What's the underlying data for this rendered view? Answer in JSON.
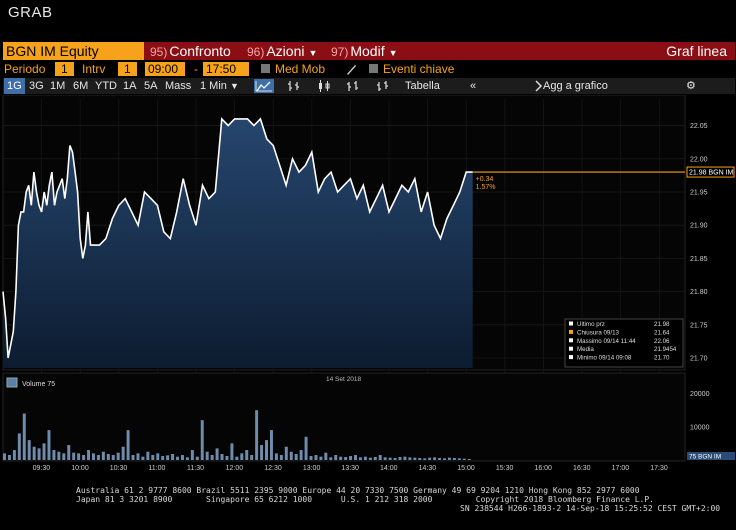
{
  "app": {
    "title": "GRAB"
  },
  "commandbar": {
    "ticker": "BGN IM Equity",
    "menus": [
      {
        "num": "95)",
        "label": "Confronto",
        "caret": false
      },
      {
        "num": "96)",
        "label": "Azioni",
        "caret": true
      },
      {
        "num": "97)",
        "label": "Modif",
        "caret": true
      }
    ],
    "view_title": "Graf linea"
  },
  "params": {
    "period_label": "Periodo",
    "period_value": "1",
    "interval_label": "Intrv",
    "interval_value": "1",
    "time_from": "09:00",
    "time_sep": "-",
    "time_to": "17:50",
    "med_mob": "Med Mob",
    "eventi": "Eventi chiave"
  },
  "toolbar": {
    "ranges": [
      "1G",
      "3G",
      "1M",
      "6M",
      "YTD",
      "1A",
      "5A",
      "Mass"
    ],
    "selected_range": "1G",
    "interval_select": "1 Min",
    "table_label": "Tabella",
    "add_label": "Agg a grafico"
  },
  "chart_data": {
    "type": "area",
    "date_label": "14 Set 2018",
    "x_ticks": [
      "09:30",
      "10:00",
      "10:30",
      "11:00",
      "11:30",
      "12:00",
      "12:30",
      "13:00",
      "13:30",
      "14:00",
      "14:30",
      "15:00",
      "15:30",
      "16:00",
      "16:30",
      "17:00",
      "17:30"
    ],
    "y_ticks": [
      "22.05",
      "22.00",
      "21.95",
      "21.90",
      "21.85",
      "21.80",
      "21.75",
      "21.70"
    ],
    "ylim": [
      21.685,
      22.09
    ],
    "xlim": [
      "09:00",
      "17:50"
    ],
    "series": [
      {
        "name": "BGN IM",
        "x": [
          "09:00",
          "09:02",
          "09:04",
          "09:06",
          "09:08",
          "09:10",
          "09:12",
          "09:14",
          "09:16",
          "09:18",
          "09:20",
          "09:22",
          "09:24",
          "09:26",
          "09:28",
          "09:30",
          "09:32",
          "09:34",
          "09:36",
          "09:38",
          "09:40",
          "09:42",
          "09:44",
          "09:46",
          "09:48",
          "09:50",
          "09:52",
          "09:54",
          "09:56",
          "09:58",
          "10:00",
          "10:02",
          "10:04",
          "10:06",
          "10:08",
          "10:10",
          "10:15",
          "10:20",
          "10:25",
          "10:30",
          "10:35",
          "10:40",
          "10:45",
          "10:50",
          "10:55",
          "11:00",
          "11:05",
          "11:10",
          "11:15",
          "11:20",
          "11:25",
          "11:30",
          "11:35",
          "11:40",
          "11:45",
          "11:50",
          "11:55",
          "12:00",
          "12:05",
          "12:10",
          "12:15",
          "12:20",
          "12:25",
          "12:30",
          "12:35",
          "12:40",
          "12:45",
          "12:50",
          "12:55",
          "13:00",
          "13:05",
          "13:10",
          "13:15",
          "13:20",
          "13:25",
          "13:30",
          "13:35",
          "13:40",
          "13:45",
          "13:50",
          "13:55",
          "14:00",
          "14:05",
          "14:10",
          "14:15",
          "14:20",
          "14:25",
          "14:30",
          "14:35",
          "14:40",
          "14:45",
          "14:50",
          "14:55",
          "15:00",
          "15:05"
        ],
        "y": [
          21.8,
          21.76,
          21.7,
          21.72,
          21.74,
          21.8,
          21.9,
          21.92,
          21.92,
          21.95,
          21.96,
          21.93,
          21.98,
          21.95,
          21.93,
          21.92,
          21.95,
          21.93,
          21.96,
          21.98,
          21.93,
          21.95,
          21.96,
          21.97,
          21.94,
          21.97,
          22.02,
          22.01,
          21.98,
          21.95,
          21.88,
          21.85,
          21.87,
          21.92,
          21.87,
          21.87,
          21.87,
          21.88,
          21.91,
          21.93,
          21.94,
          21.92,
          21.9,
          21.95,
          21.94,
          21.93,
          21.89,
          21.88,
          21.92,
          21.97,
          21.93,
          21.9,
          21.96,
          21.94,
          21.95,
          22.06,
          22.05,
          22.06,
          22.06,
          22.06,
          22.05,
          22.06,
          22.03,
          22.02,
          21.99,
          21.96,
          22.0,
          21.98,
          21.99,
          22.01,
          21.95,
          21.97,
          21.98,
          21.95,
          21.96,
          21.97,
          21.94,
          21.96,
          21.92,
          21.94,
          21.96,
          21.92,
          21.94,
          21.96,
          21.95,
          21.97,
          21.92,
          21.95,
          21.9,
          21.88,
          21.91,
          21.93,
          21.95,
          21.98,
          21.98
        ]
      }
    ],
    "last_price": "21.98",
    "last_label": "21.98 BGN IM",
    "change_abs": "+0.34",
    "change_pct": "1.57%",
    "legend": [
      {
        "label": "Ultimo prz",
        "value": "21.98",
        "color": "#ffffff"
      },
      {
        "label": "Chiusura 09/13",
        "value": "21.64",
        "color": "#f6a21a"
      },
      {
        "label": "Massimo 09/14 11:44",
        "value": "22.06",
        "color": "#ffffff"
      },
      {
        "label": "Media",
        "value": "21.9454",
        "color": "#ffffff"
      },
      {
        "label": "Minimo 09/14 09:08",
        "value": "21.70",
        "color": "#ffffff"
      }
    ],
    "volume": {
      "label": "Volume",
      "value": "75",
      "right_label": "75 BGN IM",
      "y_ticks": [
        "20000",
        "10000"
      ],
      "ylim": [
        0,
        25000
      ],
      "bars": [
        2000,
        1500,
        3000,
        8000,
        14000,
        6000,
        4000,
        3500,
        5000,
        9000,
        3000,
        2500,
        2000,
        4500,
        2200,
        2000,
        1500,
        3000,
        2000,
        1500,
        2500,
        1800,
        1500,
        2200,
        4000,
        9000,
        1500,
        2000,
        1000,
        2500,
        1500,
        2000,
        1200,
        1400,
        1800,
        1000,
        1500,
        800,
        3000,
        1000,
        12000,
        2500,
        1500,
        3500,
        1800,
        1200,
        5000,
        1000,
        2000,
        3000,
        1500,
        15000,
        4500,
        6000,
        9000,
        2000,
        1500,
        4000,
        2500,
        1800,
        3000,
        7000,
        1200,
        1500,
        1000,
        2200,
        800,
        1500,
        1000,
        900,
        1200,
        1500,
        800,
        1000,
        700,
        900,
        1500,
        800,
        700,
        600,
        900,
        1000,
        800,
        700,
        600,
        500,
        700,
        800,
        600,
        500,
        700,
        600,
        500,
        400,
        300
      ]
    }
  },
  "footer": {
    "line1": "Australia 61 2 9777 8600 Brazil 5511 2395 9000 Europe 44 20 7330 7500 Germany 49 69 9204 1210 Hong Kong 852 2977 6000",
    "line2": "Japan 81 3 3201 8900       Singapore 65 6212 1000      U.S. 1 212 318 2000         Copyright 2018 Bloomberg Finance L.P.",
    "line3": "SN 238544 H266-1893-2 14-Sep-18 15:25:52 CEST GMT+2:00"
  },
  "colors": {
    "accent": "#f6a21a",
    "command_bar": "#8a0e14",
    "area_fill_top": "#24446a",
    "area_fill_bottom": "#0d1f35",
    "line": "#ffffff",
    "selected": "#3e6fa8"
  }
}
